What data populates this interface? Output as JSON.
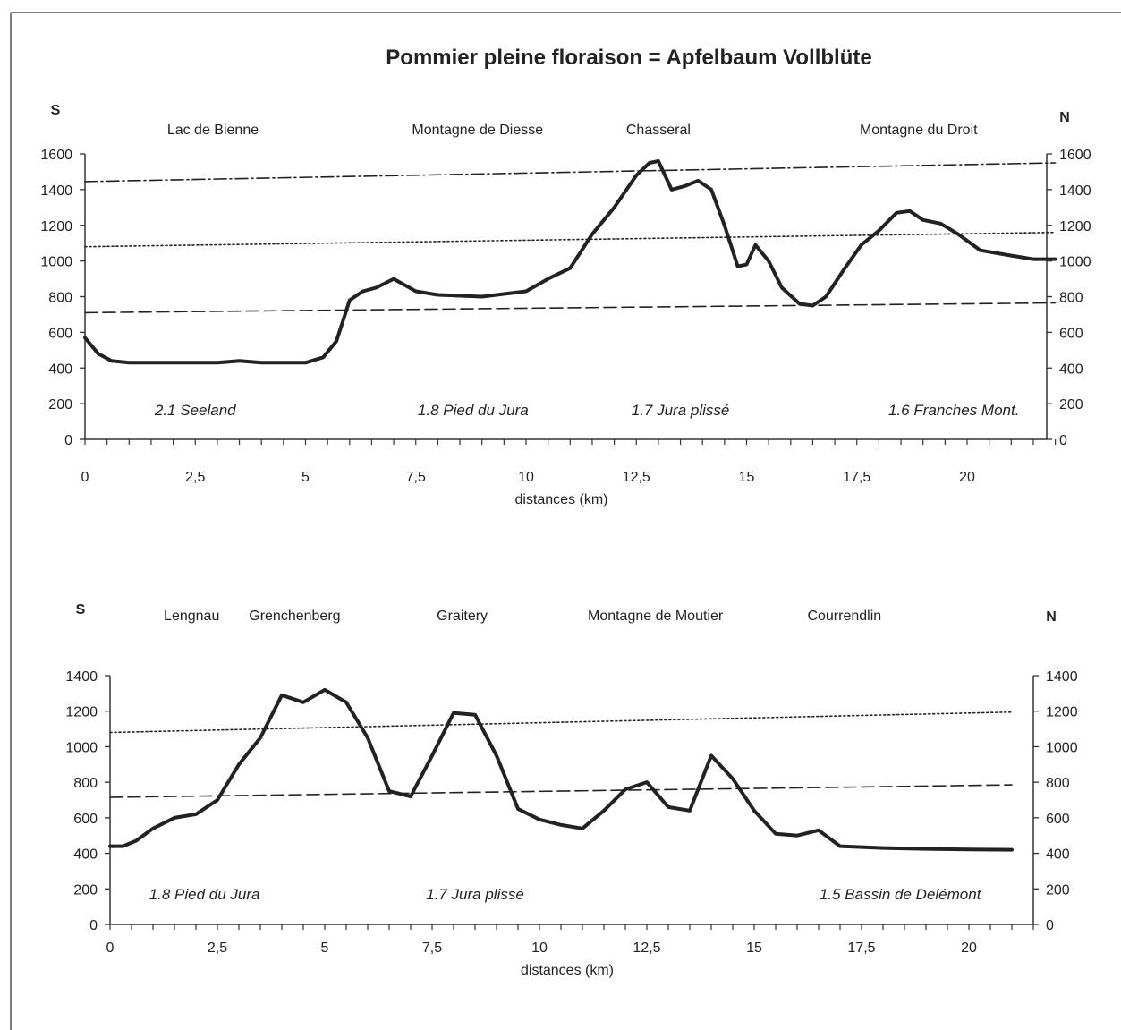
{
  "chart_data": [
    {
      "type": "line",
      "title": "Pommier pleine floraison = Apfelbaum Vollblüte",
      "xlabel": "distances (km)",
      "ylabel": "",
      "left_dir": "S",
      "right_dir": "N",
      "xlim": [
        0,
        22
      ],
      "ylim": [
        0,
        1600
      ],
      "xticks": [
        0,
        2.5,
        5,
        7.5,
        10,
        12.5,
        15,
        17.5,
        20
      ],
      "xtick_labels": [
        "0",
        "2,5",
        "5",
        "7,5",
        "10",
        "12,5",
        "15",
        "17,5",
        "20"
      ],
      "yticks": [
        0,
        200,
        400,
        600,
        800,
        1000,
        1200,
        1400,
        1600
      ],
      "ytick_labels": [
        "0",
        "200",
        "400",
        "600",
        "800",
        "1000",
        "1200",
        "1400",
        "1600"
      ],
      "place_labels": [
        {
          "text": "Lac de Bienne",
          "x": 2.9
        },
        {
          "text": "Montagne de Diesse",
          "x": 8.9
        },
        {
          "text": "Chasseral",
          "x": 13.0
        },
        {
          "text": "Montagne du Droit",
          "x": 18.9
        }
      ],
      "region_labels": [
        {
          "text": "2.1 Seeland",
          "x": 2.5
        },
        {
          "text": "1.8 Pied du Jura",
          "x": 8.8
        },
        {
          "text": "1.7 Jura plissé",
          "x": 13.5
        },
        {
          "text": "1.6 Franches Mont.",
          "x": 19.7
        }
      ],
      "series": [
        {
          "style": "solid",
          "x": [
            0,
            0.3,
            0.6,
            1,
            2,
            3,
            3.5,
            4,
            5,
            5.4,
            5.7,
            6,
            6.3,
            6.6,
            7,
            7.5,
            8,
            9,
            10,
            10.5,
            11,
            11.5,
            12,
            12.5,
            12.8,
            13,
            13.3,
            13.6,
            13.9,
            14.2,
            14.5,
            14.8,
            15,
            15.2,
            15.5,
            15.8,
            16.2,
            16.5,
            16.8,
            17.2,
            17.6,
            18,
            18.4,
            18.7,
            19,
            19.4,
            19.8,
            20.3,
            21,
            21.5,
            22
          ],
          "y": [
            570,
            480,
            440,
            430,
            430,
            430,
            440,
            430,
            430,
            460,
            550,
            780,
            830,
            850,
            900,
            830,
            810,
            800,
            830,
            900,
            960,
            1150,
            1300,
            1480,
            1550,
            1560,
            1400,
            1420,
            1450,
            1400,
            1200,
            970,
            980,
            1090,
            1000,
            850,
            760,
            750,
            800,
            950,
            1090,
            1170,
            1270,
            1280,
            1230,
            1210,
            1150,
            1060,
            1030,
            1010,
            1010
          ]
        },
        {
          "style": "dash-dot",
          "x": [
            0,
            22
          ],
          "y": [
            1445,
            1550
          ]
        },
        {
          "style": "dotted",
          "x": [
            0,
            22
          ],
          "y": [
            1080,
            1160
          ]
        },
        {
          "style": "dashed",
          "x": [
            0,
            22
          ],
          "y": [
            710,
            765
          ]
        }
      ]
    },
    {
      "type": "line",
      "title": "",
      "xlabel": "distances (km)",
      "ylabel": "",
      "left_dir": "S",
      "right_dir": "N",
      "xlim": [
        0,
        21.5
      ],
      "ylim": [
        0,
        1400
      ],
      "xticks": [
        0,
        2.5,
        5,
        7.5,
        10,
        12.5,
        15,
        17.5,
        20
      ],
      "xtick_labels": [
        "0",
        "2,5",
        "5",
        "7,5",
        "10",
        "12,5",
        "15",
        "17,5",
        "20"
      ],
      "yticks": [
        0,
        200,
        400,
        600,
        800,
        1000,
        1200,
        1400
      ],
      "ytick_labels": [
        "0",
        "200",
        "400",
        "600",
        "800",
        "1000",
        "1200",
        "1400"
      ],
      "place_labels": [
        {
          "text": "Lengnau",
          "x": 1.9
        },
        {
          "text": "Grenchenberg",
          "x": 4.3
        },
        {
          "text": "Graitery",
          "x": 8.2
        },
        {
          "text": "Montagne de Moutier",
          "x": 12.7
        },
        {
          "text": "Courrendlin",
          "x": 17.1
        }
      ],
      "region_labels": [
        {
          "text": "1.8 Pied du Jura",
          "x": 2.2
        },
        {
          "text": "1.7 Jura plissé",
          "x": 8.5
        },
        {
          "text": "1.5 Bassin de Delémont",
          "x": 18.4
        }
      ],
      "series": [
        {
          "style": "solid",
          "x": [
            0,
            0.3,
            0.6,
            1,
            1.5,
            2,
            2.5,
            3,
            3.5,
            4,
            4.5,
            5,
            5.5,
            6,
            6.5,
            7,
            7.5,
            8,
            8.5,
            9,
            9.5,
            10,
            10.5,
            11,
            11.5,
            12,
            12.5,
            13,
            13.5,
            14,
            14.5,
            15,
            15.5,
            16,
            16.5,
            17,
            18,
            19,
            20,
            21
          ],
          "y": [
            440,
            440,
            470,
            540,
            600,
            620,
            700,
            900,
            1050,
            1290,
            1250,
            1320,
            1250,
            1050,
            750,
            720,
            950,
            1190,
            1180,
            950,
            650,
            590,
            560,
            540,
            640,
            760,
            800,
            660,
            640,
            950,
            820,
            640,
            510,
            500,
            530,
            440,
            430,
            425,
            422,
            420
          ]
        },
        {
          "style": "dotted",
          "x": [
            0,
            21
          ],
          "y": [
            1080,
            1195
          ]
        },
        {
          "style": "dashed",
          "x": [
            0,
            21
          ],
          "y": [
            715,
            785
          ]
        }
      ]
    }
  ]
}
